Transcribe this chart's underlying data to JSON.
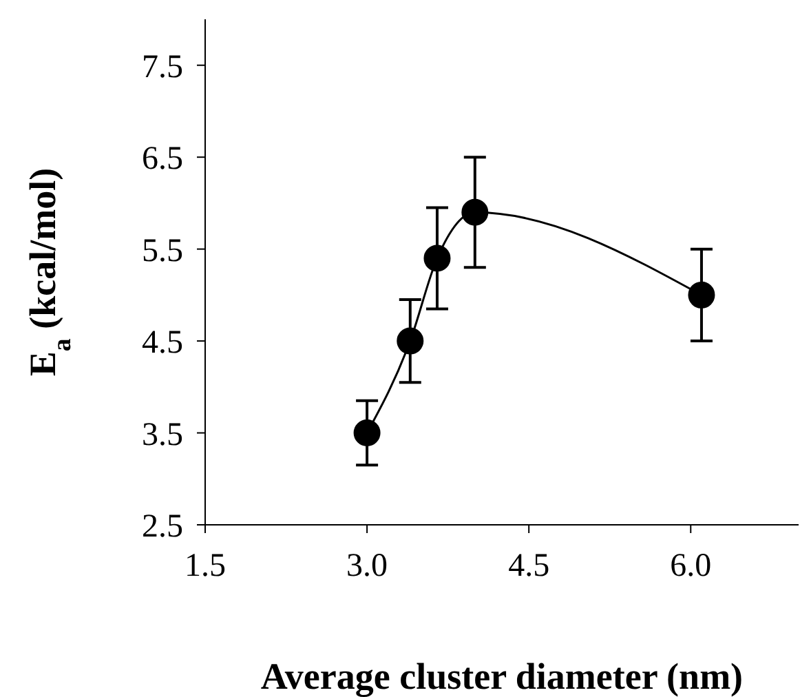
{
  "chart_data": {
    "type": "line",
    "xlabel": "Average cluster diameter (nm)",
    "ylabel": "E$_{a}$ (kcal/mol)",
    "x": [
      3.0,
      3.4,
      3.65,
      4.0,
      6.1
    ],
    "series": [
      {
        "color": "#000000",
        "values": [
          3.5,
          4.5,
          5.4,
          5.9,
          5.0
        ],
        "errors": [
          0.35,
          0.45,
          0.55,
          0.6,
          0.5
        ]
      }
    ],
    "xlim": [
      1.5,
      7.0
    ],
    "xticks": [
      1.5,
      {
        "value": 3,
        "label": "3.0"
      },
      4.5,
      {
        "value": 6,
        "label": "6.0"
      }
    ],
    "ylim": [
      2.5,
      8.0
    ],
    "yticks": [
      2.5,
      3.5,
      4.5,
      5.5,
      6.5,
      7.5
    ],
    "grid": false,
    "legend": false,
    "marker": "circle",
    "line_style": "solid"
  }
}
